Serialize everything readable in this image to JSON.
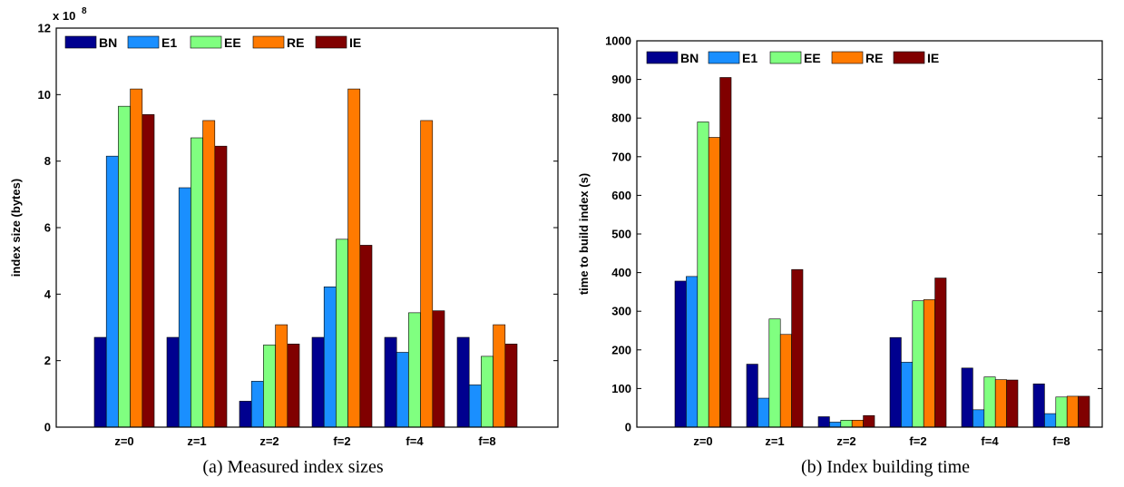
{
  "chart_data": [
    {
      "type": "bar",
      "caption": "(a) Measured index sizes",
      "ylabel": "index size (bytes)",
      "exponent_base": "x 10",
      "exponent_power": "8",
      "ylim": [
        0,
        12
      ],
      "yticks": [
        0,
        2,
        4,
        6,
        8,
        10,
        12
      ],
      "categories": [
        "z=0",
        "z=1",
        "z=2",
        "f=2",
        "f=4",
        "f=8"
      ],
      "series": [
        {
          "name": "BN",
          "color": "#00008f",
          "values": [
            2.7,
            2.7,
            0.78,
            2.7,
            2.7,
            2.7
          ]
        },
        {
          "name": "E1",
          "color": "#1a8fff",
          "values": [
            8.15,
            7.2,
            1.38,
            4.22,
            2.25,
            1.27
          ]
        },
        {
          "name": "EE",
          "color": "#80ff80",
          "values": [
            9.65,
            8.7,
            2.47,
            5.65,
            3.44,
            2.13
          ]
        },
        {
          "name": "RE",
          "color": "#ff7a00",
          "values": [
            10.17,
            9.22,
            3.08,
            10.17,
            9.22,
            3.08
          ]
        },
        {
          "name": "IE",
          "color": "#800000",
          "values": [
            9.4,
            8.45,
            2.5,
            5.47,
            3.5,
            2.5
          ]
        }
      ]
    },
    {
      "type": "bar",
      "caption": "(b) Index building time",
      "ylabel": "time to build index (s)",
      "ylim": [
        0,
        1000
      ],
      "yticks": [
        0,
        100,
        200,
        300,
        400,
        500,
        600,
        700,
        800,
        900,
        1000
      ],
      "categories": [
        "z=0",
        "z=1",
        "z=2",
        "f=2",
        "f=4",
        "f=8"
      ],
      "series": [
        {
          "name": "BN",
          "color": "#00008f",
          "values": [
            378,
            163,
            27,
            232,
            153,
            112
          ]
        },
        {
          "name": "E1",
          "color": "#1a8fff",
          "values": [
            390,
            75,
            13,
            168,
            45,
            35
          ]
        },
        {
          "name": "EE",
          "color": "#80ff80",
          "values": [
            790,
            280,
            18,
            327,
            130,
            78
          ]
        },
        {
          "name": "RE",
          "color": "#ff7a00",
          "values": [
            750,
            240,
            18,
            330,
            123,
            80
          ]
        },
        {
          "name": "IE",
          "color": "#800000",
          "values": [
            905,
            408,
            30,
            386,
            122,
            80
          ]
        }
      ]
    }
  ]
}
